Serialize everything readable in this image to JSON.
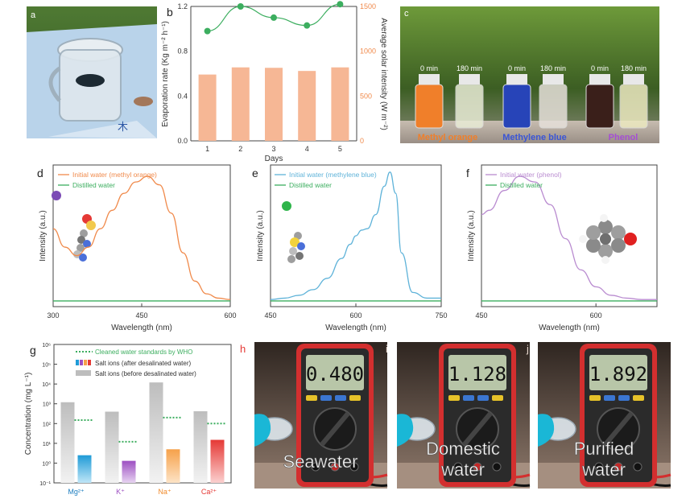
{
  "panel_labels": {
    "a": "a",
    "b": "b",
    "c": "c",
    "d": "d",
    "e": "e",
    "f": "f",
    "g": "g",
    "h": "h",
    "i": "i",
    "j": "j"
  },
  "photo_a": {
    "caption": "木"
  },
  "photo_c": {
    "times": [
      "0 min",
      "180 min",
      "0 min",
      "180 min",
      "0 min",
      "180 min"
    ],
    "labels": [
      "Methyl orange",
      "Methylene blue",
      "Phenol"
    ]
  },
  "meters": [
    {
      "reading": "0.480",
      "label_lines": [
        "Seawater"
      ]
    },
    {
      "reading": "1.128",
      "label_lines": [
        "Domestic",
        "water"
      ]
    },
    {
      "reading": "1.892",
      "label_lines": [
        "Purified",
        "water"
      ]
    }
  ],
  "colors": {
    "orange": "#f08a4b",
    "bar": "#f6b795",
    "green": "#3cae5f",
    "blue": "#5fb3d9",
    "purple": "#b98bd0",
    "grey": "#bdbdbd",
    "red": "#e53935"
  },
  "chart_data": [
    {
      "id": "b",
      "type": "bar",
      "categories": [
        "1",
        "2",
        "3",
        "4",
        "5"
      ],
      "series": [
        {
          "name": "Average solar intensity",
          "axis": "right",
          "values": [
            740,
            820,
            815,
            780,
            820
          ]
        },
        {
          "name": "Evaporation rate",
          "axis": "left",
          "type": "line",
          "values": [
            0.98,
            1.2,
            1.1,
            1.03,
            1.22
          ]
        }
      ],
      "xlabel": "Days",
      "ylabel": "Evaporation rate (Kg m⁻² h⁻¹)",
      "ylabel_right": "Average solar intensity (W m⁻²)",
      "ylim": [
        0,
        1.2
      ],
      "yticks": [
        "0.0",
        "0.4",
        "0.8",
        "1.2"
      ],
      "ylim_right": [
        0,
        1500
      ],
      "yticks_right": [
        "0",
        "500",
        "1000",
        "1500"
      ]
    },
    {
      "id": "d",
      "type": "line",
      "xlim": [
        300,
        600
      ],
      "xticks": [
        "300",
        "450",
        "600"
      ],
      "xlabel": "Wavelength (nm)",
      "ylabel": "Intensity (a.u.)",
      "legend": [
        "Initial  water (methyl orange)",
        "Distilled water"
      ],
      "series": [
        {
          "name": "Initial  water (methyl orange)",
          "x": [
            300,
            320,
            340,
            360,
            380,
            400,
            420,
            440,
            460,
            480,
            500,
            520,
            540,
            560,
            580,
            600
          ],
          "y": [
            0.55,
            0.42,
            0.36,
            0.42,
            0.55,
            0.68,
            0.8,
            0.88,
            0.92,
            0.86,
            0.66,
            0.38,
            0.18,
            0.09,
            0.06,
            0.05
          ]
        },
        {
          "name": "Distilled water",
          "x": [
            300,
            600
          ],
          "y": [
            0.04,
            0.04
          ]
        }
      ]
    },
    {
      "id": "e",
      "type": "line",
      "xlim": [
        450,
        750
      ],
      "xticks": [
        "450",
        "600",
        "750"
      ],
      "xlabel": "Wavelength (nm)",
      "ylabel": "Intensity (a.u.)",
      "legend": [
        "Initial  water (methylene blue)",
        "Distilled water"
      ],
      "series": [
        {
          "name": "Initial  water (methylene blue)",
          "x": [
            450,
            475,
            500,
            525,
            550,
            575,
            590,
            600,
            610,
            620,
            635,
            650,
            660,
            670,
            680,
            700,
            725,
            750
          ],
          "y": [
            0.05,
            0.06,
            0.08,
            0.12,
            0.2,
            0.34,
            0.44,
            0.5,
            0.54,
            0.55,
            0.65,
            0.85,
            0.95,
            0.8,
            0.38,
            0.1,
            0.06,
            0.06
          ]
        },
        {
          "name": "Distilled water",
          "x": [
            450,
            750
          ],
          "y": [
            0.04,
            0.04
          ]
        }
      ]
    },
    {
      "id": "f",
      "type": "line",
      "xlim": [
        450,
        680
      ],
      "xticks": [
        "450",
        "600"
      ],
      "xlabel": "Wavelength (nm)",
      "ylabel": "Intensity (a.u.)",
      "legend": [
        "Initial  water (phenol)",
        "Distilled water"
      ],
      "series": [
        {
          "name": "Initial  water (phenol)",
          "x": [
            450,
            460,
            480,
            500,
            520,
            540,
            560,
            580,
            600,
            620,
            640,
            660,
            680
          ],
          "y": [
            0.65,
            0.68,
            0.82,
            0.92,
            0.88,
            0.72,
            0.48,
            0.26,
            0.14,
            0.08,
            0.06,
            0.05,
            0.05
          ]
        },
        {
          "name": "Distilled water",
          "x": [
            450,
            680
          ],
          "y": [
            0.04,
            0.04
          ]
        }
      ]
    },
    {
      "id": "g",
      "type": "bar",
      "yscale": "log",
      "categories": [
        "Mg²⁺",
        "K⁺",
        "Na⁺",
        "Ca²⁺"
      ],
      "ylim": [
        0.1,
        1000000
      ],
      "yticks": [
        "10⁻¹",
        "10⁰",
        "10¹",
        "10²",
        "10³",
        "10⁴",
        "10⁵",
        "10⁶"
      ],
      "ylabel": "Concentration (mg L⁻¹)",
      "legend": [
        "Cleaned water standards by WHO",
        "Salt ions (after desalinated water)",
        "Salt ions (before desalinated water)"
      ],
      "series": [
        {
          "name": "Salt ions (before desalinated water)",
          "values": [
            1200,
            400,
            12000,
            420
          ]
        },
        {
          "name": "Salt ions (after desalinated water)",
          "values": [
            2.5,
            1.3,
            5,
            15
          ]
        },
        {
          "name": "Cleaned water standards by WHO",
          "values": [
            150,
            12,
            200,
            100
          ]
        }
      ]
    }
  ]
}
